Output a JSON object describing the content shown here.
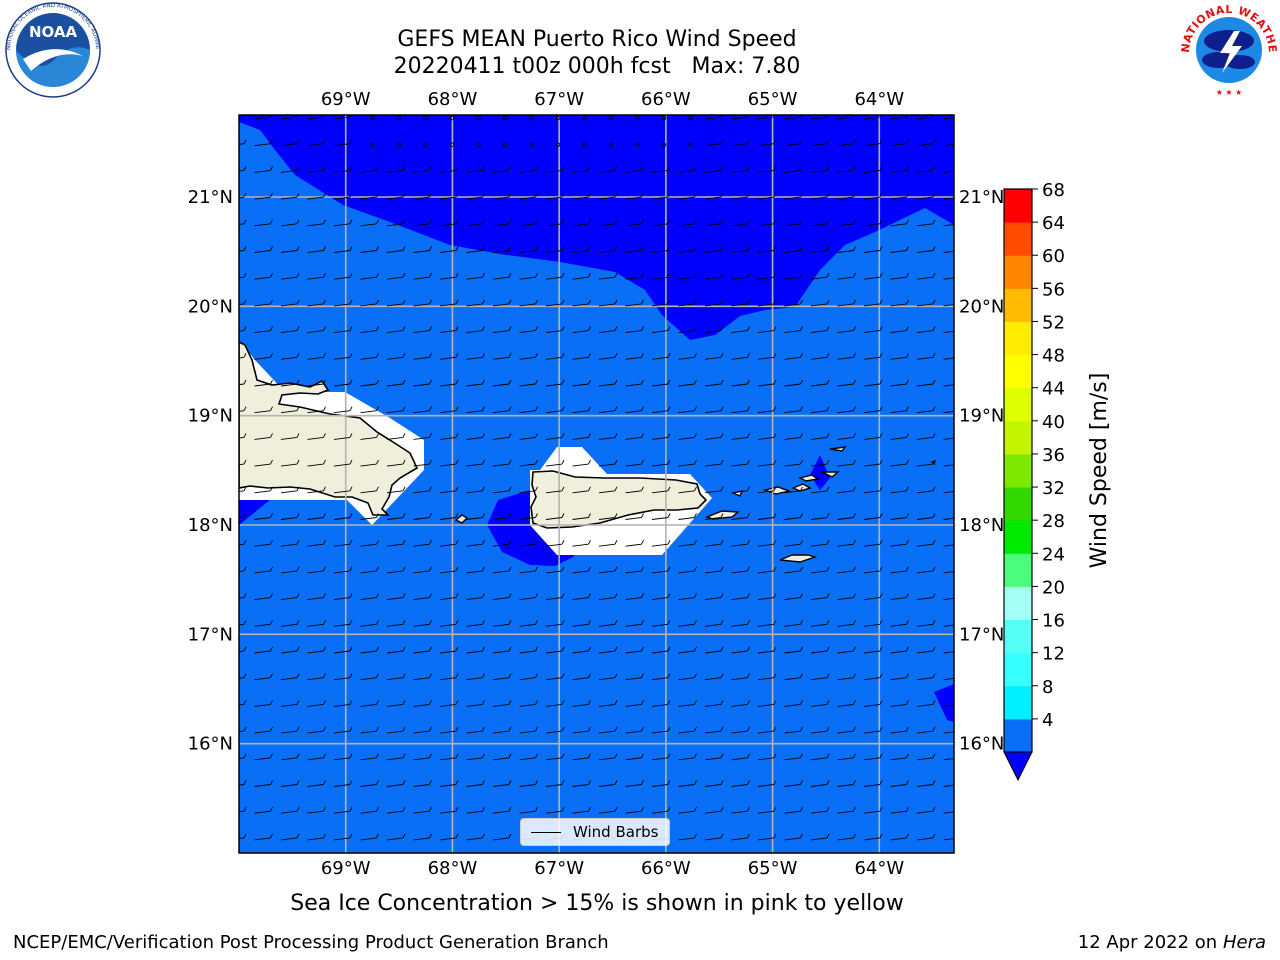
{
  "header": {
    "title_line1": "GEFS MEAN Puerto Rico Wind Speed",
    "title_line2": "20220411 t00z 000h fcst   Max: 7.80"
  },
  "logos": {
    "left": {
      "icon": "noaa-logo-icon",
      "text": "NOAA",
      "ring_text": "NATIONAL OCEANIC AND ATMOSPHERIC ADMINISTRATION · U.S. DEPARTMENT OF COMMERCE"
    },
    "right": {
      "icon": "nws-logo-icon",
      "ring_text": "NATIONAL WEATHER SERVICE"
    }
  },
  "map": {
    "lon_range": [
      -70.0,
      -63.3
    ],
    "lat_range": [
      15.0,
      21.75
    ],
    "lon_ticks": [
      "69°W",
      "68°W",
      "67°W",
      "66°W",
      "65°W",
      "64°W"
    ],
    "lon_tick_values": [
      -69,
      -68,
      -67,
      -66,
      -65,
      -64
    ],
    "lat_ticks": [
      "21°N",
      "20°N",
      "19°N",
      "18°N",
      "17°N",
      "16°N"
    ],
    "lat_tick_values": [
      21,
      20,
      19,
      18,
      17,
      16
    ],
    "grid": true,
    "colors": {
      "below_4": "#0000ff",
      "band_4_8": "#0a6ff7",
      "land": "#efefdc",
      "gridline": "#b4b4b4"
    },
    "legend_label": "Wind Barbs"
  },
  "colorbar": {
    "title": "Wind Speed [m/s]",
    "ticks": [
      "68",
      "64",
      "60",
      "56",
      "52",
      "48",
      "44",
      "40",
      "36",
      "32",
      "28",
      "24",
      "20",
      "16",
      "12",
      "8",
      "4"
    ],
    "colors": [
      "#0a6ff7",
      "#00f0ff",
      "#36ffff",
      "#56fff6",
      "#a4fff6",
      "#4bfd7a",
      "#00ea00",
      "#33d800",
      "#7fe800",
      "#c4f500",
      "#dffe00",
      "#ffff00",
      "#ffec00",
      "#ffbb00",
      "#ff8500",
      "#ff4c00",
      "#ff0000"
    ],
    "extend_color": "#0000ff"
  },
  "footer": {
    "note": "Sea Ice Concentration > 15% is shown in pink to yellow",
    "credit_left": "NCEP/EMC/Verification Post Processing Product Generation Branch",
    "credit_right_prefix": "12 Apr 2022 on ",
    "credit_right_machine": "Hera"
  }
}
